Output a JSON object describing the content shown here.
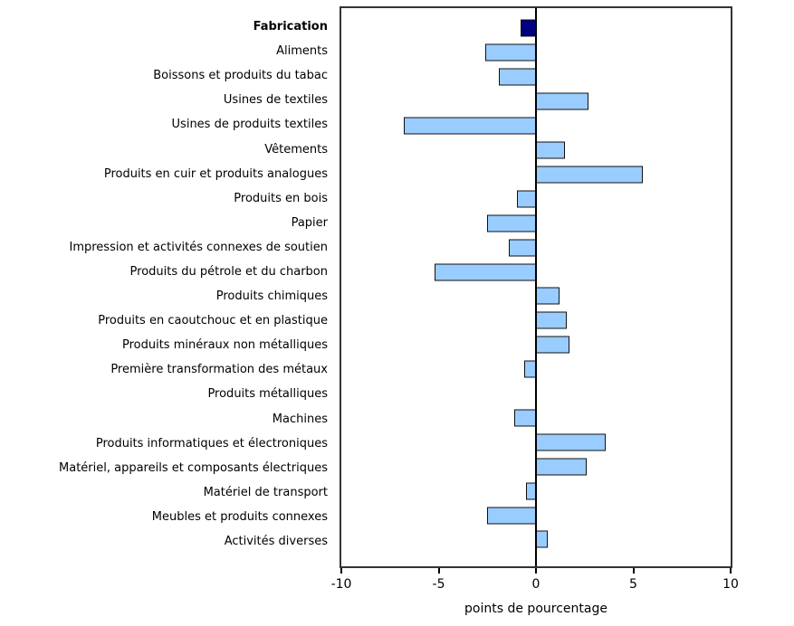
{
  "chart_data": {
    "type": "bar",
    "orientation": "horizontal",
    "title": "",
    "xlabel": "points de pourcentage",
    "xlim": [
      -10,
      10
    ],
    "xticks": [
      -10,
      -5,
      0,
      5,
      10
    ],
    "grid": false,
    "legend": false,
    "highlight_index": 0,
    "categories": [
      "Fabrication",
      "Aliments",
      "Boissons et produits du tabac",
      "Usines de textiles",
      "Usines de produits textiles",
      "Vêtements",
      "Produits en cuir et produits analogues",
      "Produits en bois",
      "Papier",
      "Impression et activités connexes de soutien",
      "Produits du pétrole et du charbon",
      "Produits chimiques",
      "Produits en caoutchouc et en plastique",
      "Produits minéraux non métalliques",
      "Première transformation des métaux",
      "Produits métalliques",
      "Machines",
      "Produits informatiques et électroniques",
      "Matériel, appareils et composants électriques",
      "Matériel de transport",
      "Meubles et produits connexes",
      "Activités diverses"
    ],
    "values": [
      -0.8,
      -2.6,
      -1.9,
      2.7,
      -6.8,
      1.5,
      5.5,
      -1.0,
      -2.5,
      -1.4,
      -5.2,
      1.2,
      1.6,
      1.7,
      -0.6,
      0.0,
      -1.1,
      3.6,
      2.6,
      -0.5,
      -2.5,
      0.6
    ],
    "colors": {
      "bar_fill": "#99CCFF",
      "bar_border": "#111111",
      "highlight_fill": "#000080",
      "frame": "#333333",
      "axis": "#000000",
      "text": "#000000"
    }
  }
}
